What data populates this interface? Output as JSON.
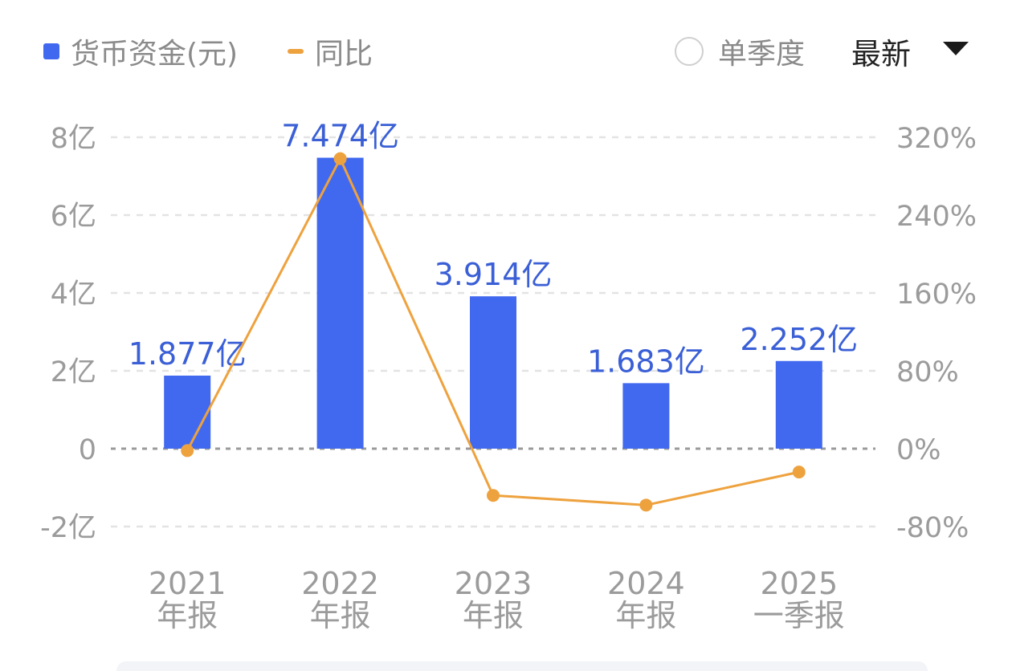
{
  "legend": {
    "bar_label": "货币资金(元)",
    "line_label": "同比",
    "toggle_label": "单季度",
    "sort_label": "最新"
  },
  "colors": {
    "bar": "#4169f0",
    "line": "#eea23e",
    "grid": "#e3e3e3",
    "zero_line": "#9a9a9a",
    "axis_text": "#9b9b9b",
    "value_label": "#3a5fd6"
  },
  "chart_data": {
    "type": "bar",
    "categories": [
      [
        "2021",
        "年报"
      ],
      [
        "2022",
        "年报"
      ],
      [
        "2023",
        "年报"
      ],
      [
        "2024",
        "年报"
      ],
      [
        "2025",
        "一季报"
      ]
    ],
    "series": [
      {
        "name": "货币资金(元)",
        "type": "bar",
        "axis": "left",
        "values": [
          1.877,
          7.474,
          3.914,
          1.683,
          2.252
        ],
        "labels": [
          "1.877亿",
          "7.474亿",
          "3.914亿",
          "1.683亿",
          "2.252亿"
        ]
      },
      {
        "name": "同比",
        "type": "line",
        "axis": "right",
        "values": [
          -2,
          298,
          -48,
          -58,
          -24
        ]
      }
    ],
    "y_left": {
      "min": -2,
      "max": 8,
      "ticks": [
        8,
        6,
        4,
        2,
        0,
        -2
      ],
      "tick_labels": [
        "8亿",
        "6亿",
        "4亿",
        "2亿",
        "0",
        "-2亿"
      ]
    },
    "y_right": {
      "min": -80,
      "max": 320,
      "ticks": [
        320,
        240,
        160,
        80,
        0,
        -80
      ],
      "tick_labels": [
        "320%",
        "240%",
        "160%",
        "80%",
        "0%",
        "-80%"
      ]
    },
    "grid": true,
    "legend_position": "top-left"
  }
}
